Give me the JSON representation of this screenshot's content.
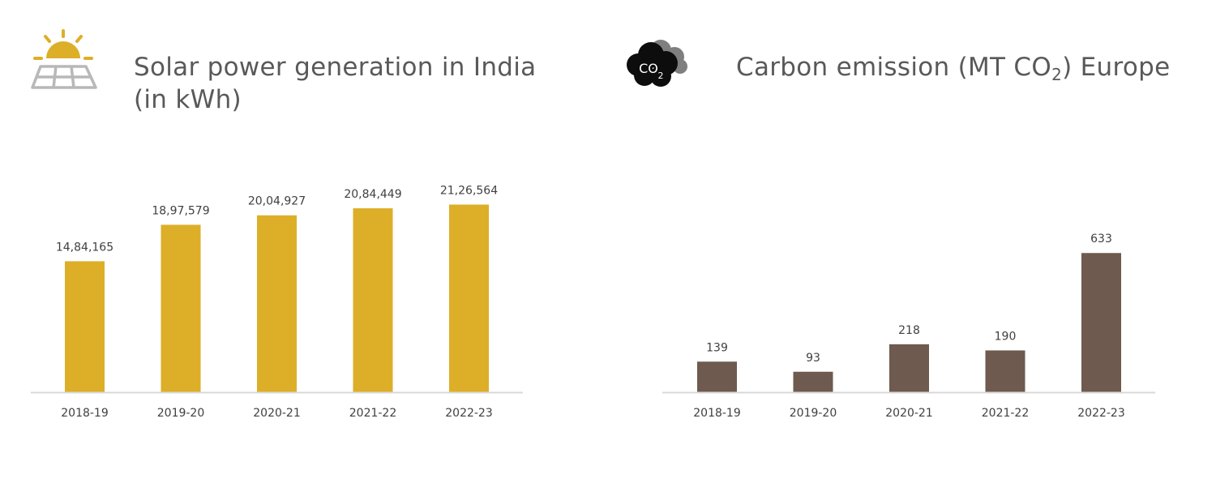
{
  "chart_data": [
    {
      "type": "bar",
      "title": "Solar power generation in India",
      "subtitle": "(in kWh)",
      "categories": [
        "2018-19",
        "2019-20",
        "2020-21",
        "2021-22",
        "2022-23"
      ],
      "values": [
        1484165,
        1897579,
        2004927,
        2084449,
        2126564
      ],
      "value_labels": [
        "14,84,165",
        "18,97,579",
        "20,04,927",
        "20,84,449",
        "21,26,564"
      ],
      "ylim": [
        0,
        2400000
      ],
      "bar_color": "#DDAE27",
      "grid": false,
      "icon": "solar-panel-sun-icon"
    },
    {
      "type": "bar",
      "title_prefix": "Carbon emission (MT CO",
      "title_subscript": "2",
      "title_suffix": ") Europe",
      "categories": [
        "2018-19",
        "2019-20",
        "2020-21",
        "2021-22",
        "2022-23"
      ],
      "values": [
        139,
        93,
        218,
        190,
        633
      ],
      "value_labels": [
        "139",
        "93",
        "218",
        "190",
        "633"
      ],
      "ylim": [
        0,
        750
      ],
      "bar_color": "#6E5A4E",
      "grid": false,
      "icon": "co2-cloud-icon",
      "icon_text": "CO",
      "icon_subscript": "2"
    }
  ]
}
